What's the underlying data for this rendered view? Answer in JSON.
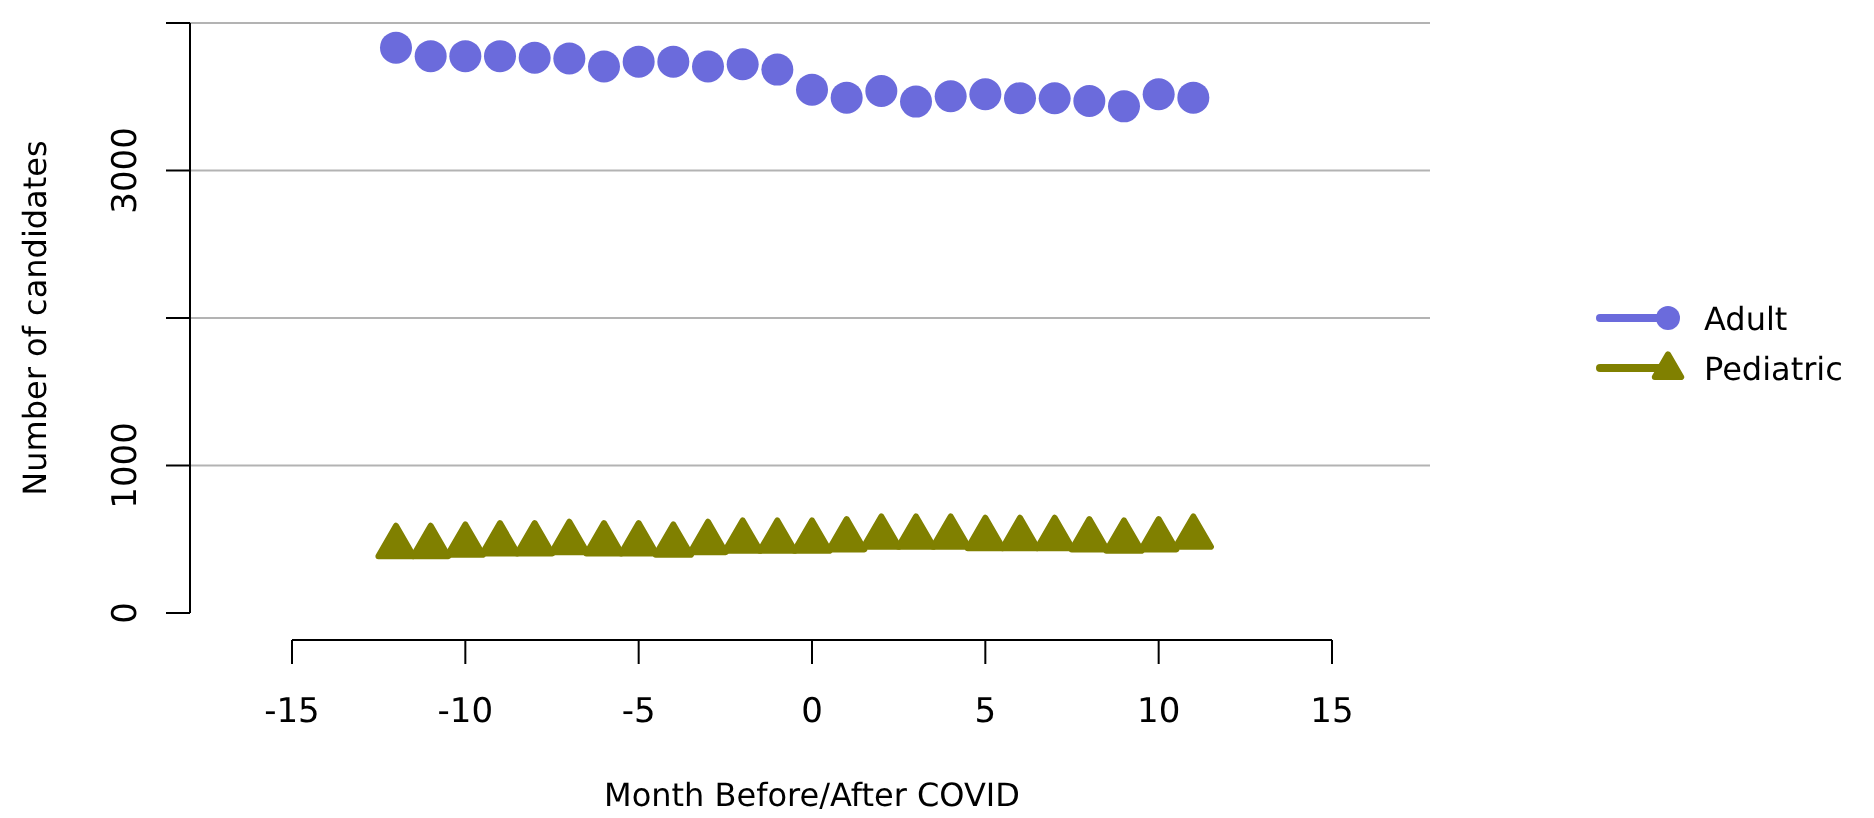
{
  "chart_data": {
    "type": "scatter",
    "xlabel": "Month Before/After COVID",
    "ylabel": "Number of candidates",
    "x": [
      -12,
      -11,
      -10,
      -9,
      -8,
      -7,
      -6,
      -5,
      -4,
      -3,
      -2,
      -1,
      0,
      1,
      2,
      3,
      4,
      5,
      6,
      7,
      8,
      9,
      10,
      11
    ],
    "series": [
      {
        "name": "Adult",
        "color": "#6b6bdc",
        "marker": "circle",
        "values": [
          3833,
          3775,
          3775,
          3775,
          3765,
          3760,
          3705,
          3738,
          3738,
          3705,
          3720,
          3684,
          3548,
          3494,
          3539,
          3467,
          3503,
          3517,
          3490,
          3490,
          3471,
          3435,
          3517,
          3494
        ]
      },
      {
        "name": "Pediatric",
        "color": "#808000",
        "marker": "triangle",
        "values": [
          468,
          468,
          477,
          486,
          486,
          495,
          486,
          486,
          477,
          495,
          504,
          504,
          504,
          513,
          531,
          531,
          531,
          522,
          522,
          522,
          513,
          504,
          513,
          531
        ]
      }
    ],
    "xlim": [
      -15,
      15
    ],
    "xticks": [
      -15,
      -10,
      -5,
      0,
      5,
      10,
      15
    ],
    "ylim": [
      0,
      4000
    ],
    "yticks": [
      0,
      1000,
      {
        "value": 2000,
        "label": null
      },
      3000,
      {
        "value": 4000,
        "label": null
      }
    ],
    "grid": "y",
    "legend": "right"
  }
}
